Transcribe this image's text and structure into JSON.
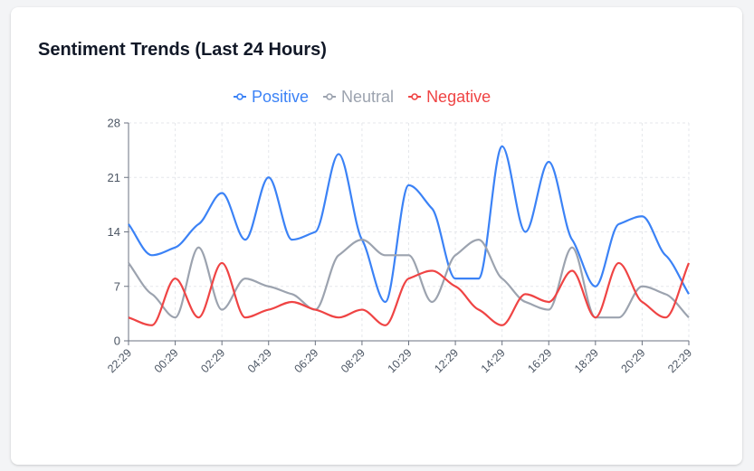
{
  "card": {
    "title": "Sentiment Trends (Last 24 Hours)"
  },
  "chart_data": {
    "type": "line",
    "title": "Sentiment Trends (Last 24 Hours)",
    "xlabel": "",
    "ylabel": "",
    "ylim": [
      0,
      28
    ],
    "yticks": [
      0,
      7,
      14,
      21,
      28
    ],
    "xtick_labels": [
      "22:29",
      "00:29",
      "02:29",
      "04:29",
      "06:29",
      "08:29",
      "10:29",
      "12:29",
      "14:29",
      "16:29",
      "18:29",
      "20:29",
      "22:29"
    ],
    "grid": true,
    "legend_position": "top-center",
    "series": [
      {
        "name": "Positive",
        "color": "#3b82f6",
        "values": [
          15,
          11,
          12,
          15,
          19,
          13,
          21,
          13,
          14,
          24,
          13,
          5,
          20,
          17,
          8,
          8,
          25,
          14,
          23,
          13,
          7,
          15,
          16,
          11,
          6
        ]
      },
      {
        "name": "Neutral",
        "color": "#9ca3af",
        "values": [
          10,
          6,
          3,
          12,
          4,
          8,
          7,
          6,
          4,
          11,
          13,
          11,
          11,
          5,
          11,
          13,
          8,
          5,
          4,
          12,
          3,
          3,
          7,
          6,
          3
        ]
      },
      {
        "name": "Negative",
        "color": "#ef4444",
        "values": [
          3,
          2,
          8,
          3,
          10,
          3,
          4,
          5,
          4,
          3,
          4,
          2,
          8,
          9,
          7,
          4,
          2,
          6,
          5,
          9,
          3,
          10,
          5,
          3,
          10
        ]
      }
    ]
  }
}
